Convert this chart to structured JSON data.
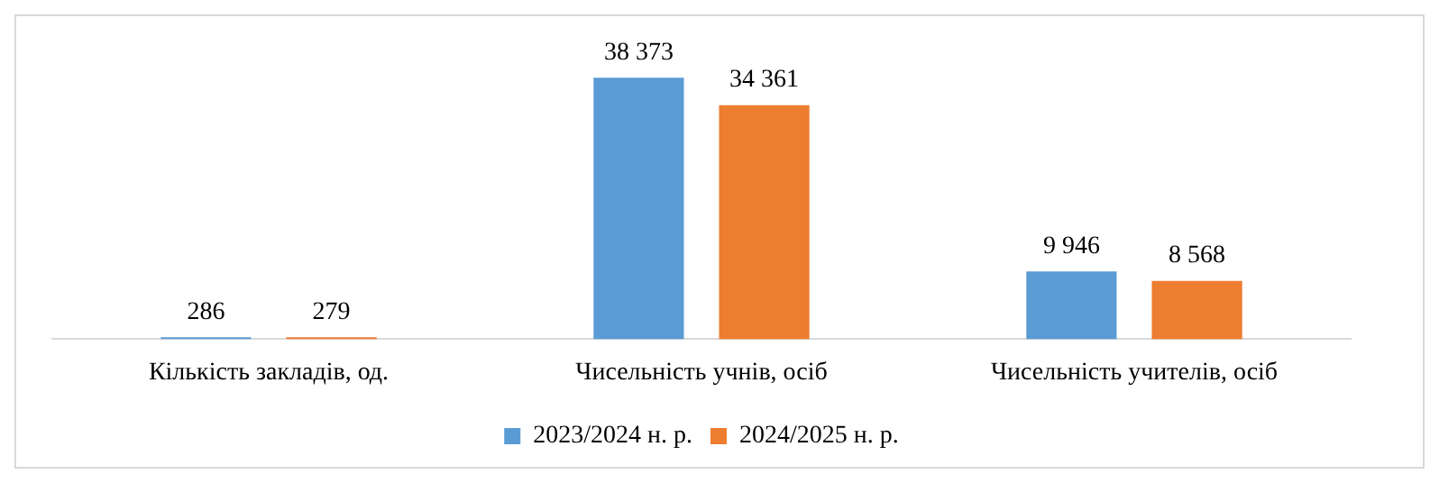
{
  "chart_data": {
    "type": "bar",
    "categories": [
      "Кількість закладів, од.",
      "Чисельність учнів, осіб",
      "Чисельність учителів, осіб"
    ],
    "series": [
      {
        "name": "2023/2024 н. р.",
        "color": "#5b9bd5",
        "values": [
          286,
          38373,
          9946
        ]
      },
      {
        "name": "2024/2025 н. р.",
        "color": "#ed7d31",
        "values": [
          279,
          34361,
          8568
        ]
      }
    ],
    "data_labels": true,
    "legend": "bottom",
    "grid": false
  }
}
